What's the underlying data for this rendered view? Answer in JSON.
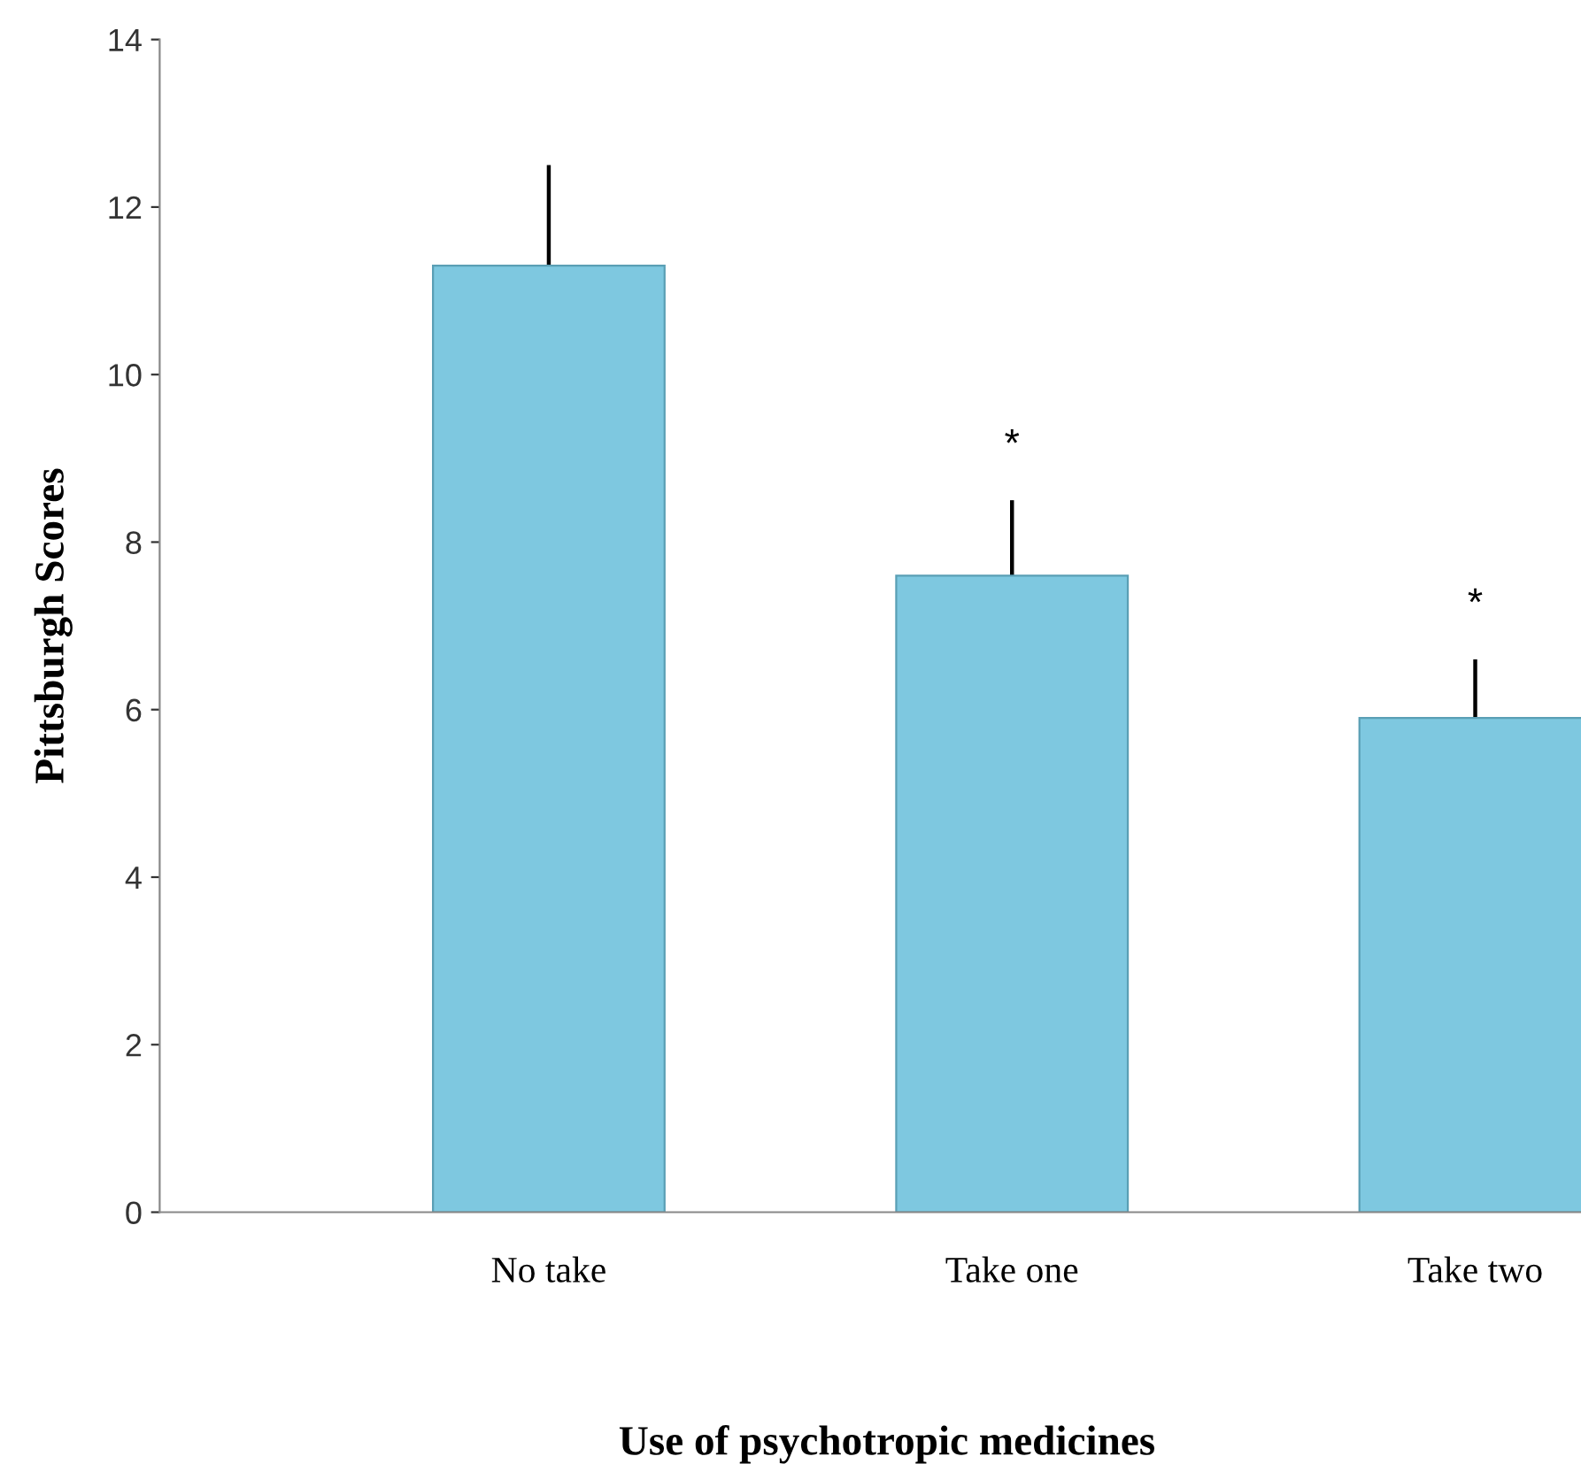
{
  "chart_data": {
    "type": "bar",
    "xlabel": "Use of psychotropic medicines",
    "ylabel": "Pittsburgh Scores",
    "categories": [
      "No take",
      "Take one",
      "Take two"
    ],
    "values": [
      11.3,
      7.6,
      5.9
    ],
    "errors": [
      [
        11.3,
        12.5
      ],
      [
        7.6,
        8.5
      ],
      [
        5.9,
        6.6
      ]
    ],
    "color": "#7ec8e0",
    "ylim": [
      0,
      14
    ],
    "yticks": [
      0,
      2,
      4,
      6,
      8,
      10,
      12,
      14
    ],
    "annotations": [
      "*",
      "*"
    ],
    "grid": false
  }
}
